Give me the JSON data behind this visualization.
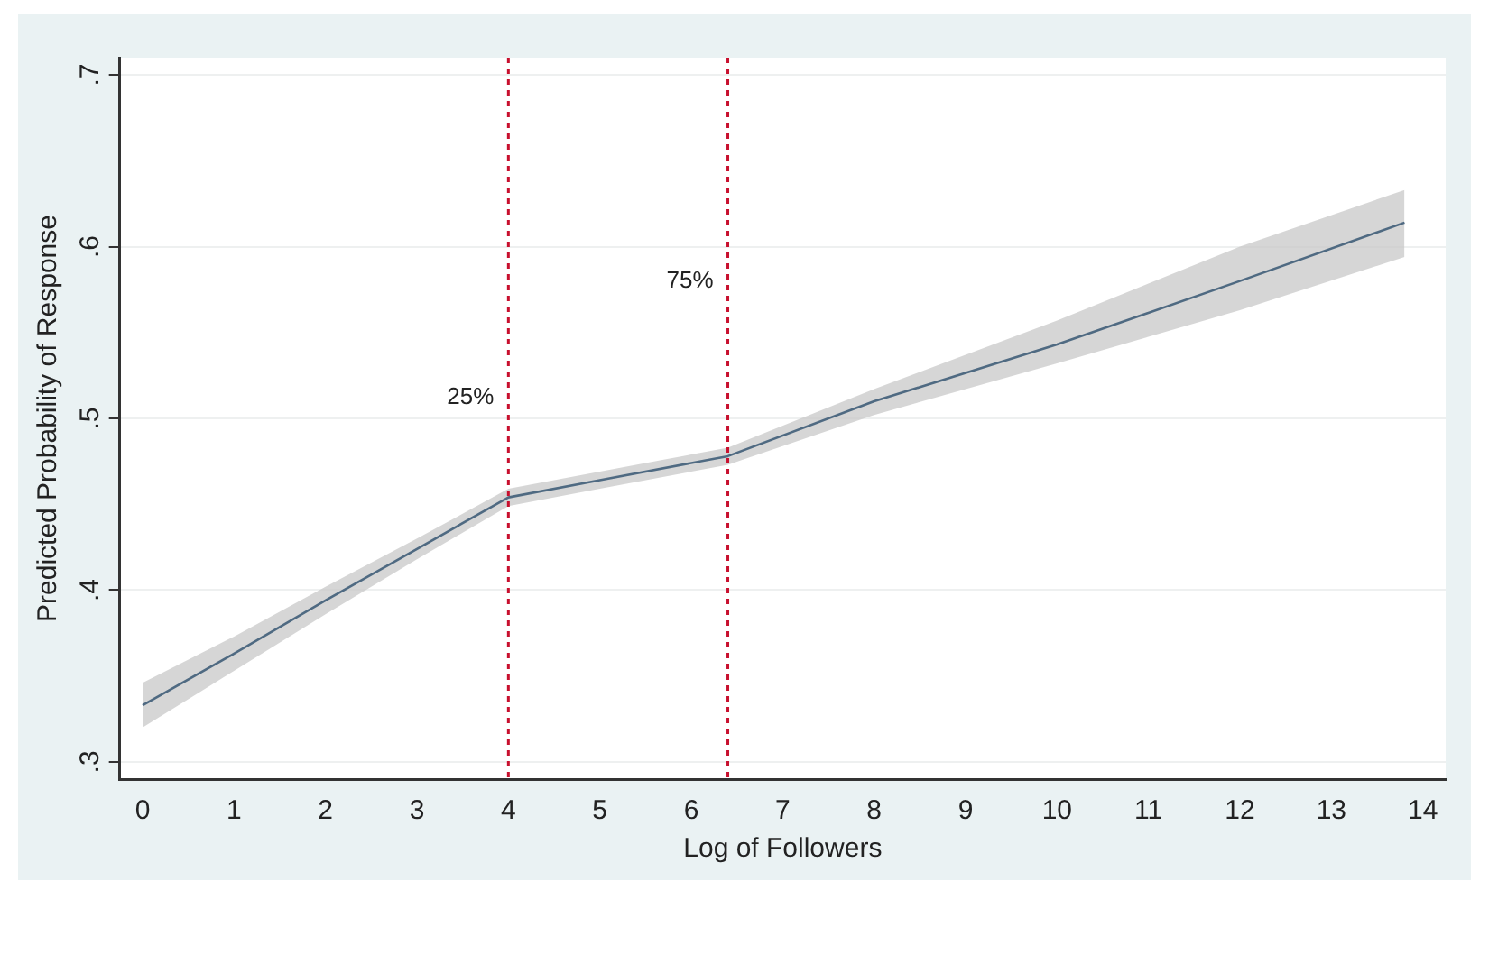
{
  "chart_data": {
    "type": "line",
    "xlabel": "Log of Followers",
    "ylabel": "Predicted Probability of Response",
    "x": [
      0,
      1,
      2,
      3,
      4,
      5,
      6.4,
      8,
      10,
      12,
      13.8
    ],
    "series": [
      {
        "color": "#4f6a82",
        "values": [
          0.333,
          0.363,
          0.394,
          0.424,
          0.454,
          0.464,
          0.478,
          0.51,
          0.543,
          0.58,
          0.614
        ],
        "lower": [
          0.32,
          0.353,
          0.386,
          0.418,
          0.449,
          0.459,
          0.473,
          0.502,
          0.532,
          0.563,
          0.594
        ],
        "upper": [
          0.346,
          0.373,
          0.402,
          0.43,
          0.459,
          0.469,
          0.483,
          0.517,
          0.557,
          0.6,
          0.633
        ]
      }
    ],
    "xlim": [
      -0.25,
      14.25
    ],
    "xticks": [
      0,
      1,
      2,
      3,
      4,
      5,
      6,
      7,
      8,
      9,
      10,
      11,
      12,
      13,
      14
    ],
    "ylim": [
      0.29,
      0.71
    ],
    "yticks": [
      {
        "value": 0.3,
        "label": ".3"
      },
      {
        "value": 0.4,
        "label": ".4"
      },
      {
        "value": 0.5,
        "label": ".5"
      },
      {
        "value": 0.6,
        "label": ".6"
      },
      {
        "value": 0.7,
        "label": ".7"
      }
    ],
    "ref_lines": [
      {
        "axis": "x",
        "value": 4,
        "color": "#c8102e",
        "line_style": "dotted"
      },
      {
        "axis": "x",
        "value": 6.4,
        "color": "#c8102e",
        "line_style": "dotted"
      }
    ],
    "annotations": [
      {
        "text": "25%",
        "x": 4,
        "y": 0.512
      },
      {
        "text": "75%",
        "x": 6.4,
        "y": 0.58
      }
    ],
    "grid": "y",
    "legend": false,
    "marker": "none",
    "line_style": "solid"
  }
}
